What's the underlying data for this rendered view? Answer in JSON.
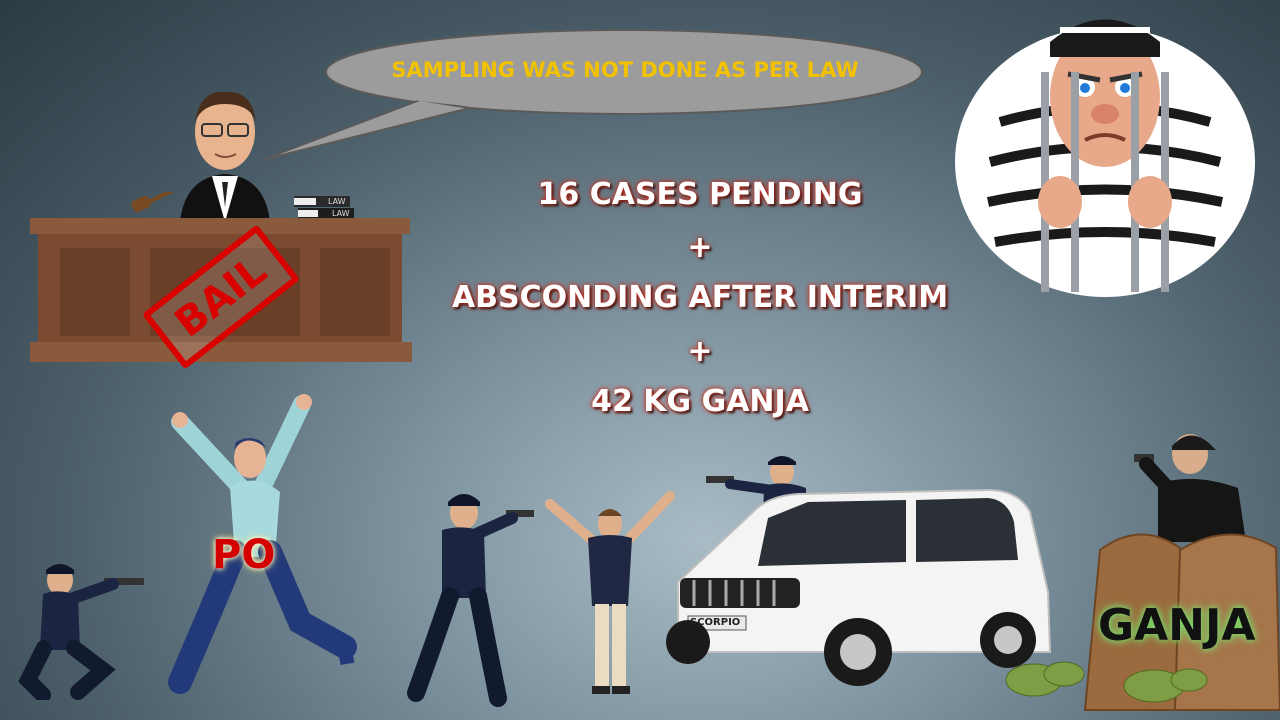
{
  "speech_bubble": {
    "text": "SAMPLING WAS NOT DONE AS PER LAW"
  },
  "center": {
    "line1": "16 CASES PENDING",
    "plus1": "+",
    "line2": "ABSCONDING AFTER INTERIM",
    "plus2": "+",
    "line3": "42 KG GANJA"
  },
  "stamp": {
    "text": "BAIL"
  },
  "books": {
    "label1": "LAW",
    "label2": "LAW"
  },
  "fugitive": {
    "label": "PO"
  },
  "sacks": {
    "label": "GANJA"
  },
  "vehicle": {
    "plate": "SCORPIO"
  },
  "colors": {
    "bubble_text": "#f2c200",
    "stamp_red": "#d90000",
    "ganja_glow": "#7bd96a"
  }
}
